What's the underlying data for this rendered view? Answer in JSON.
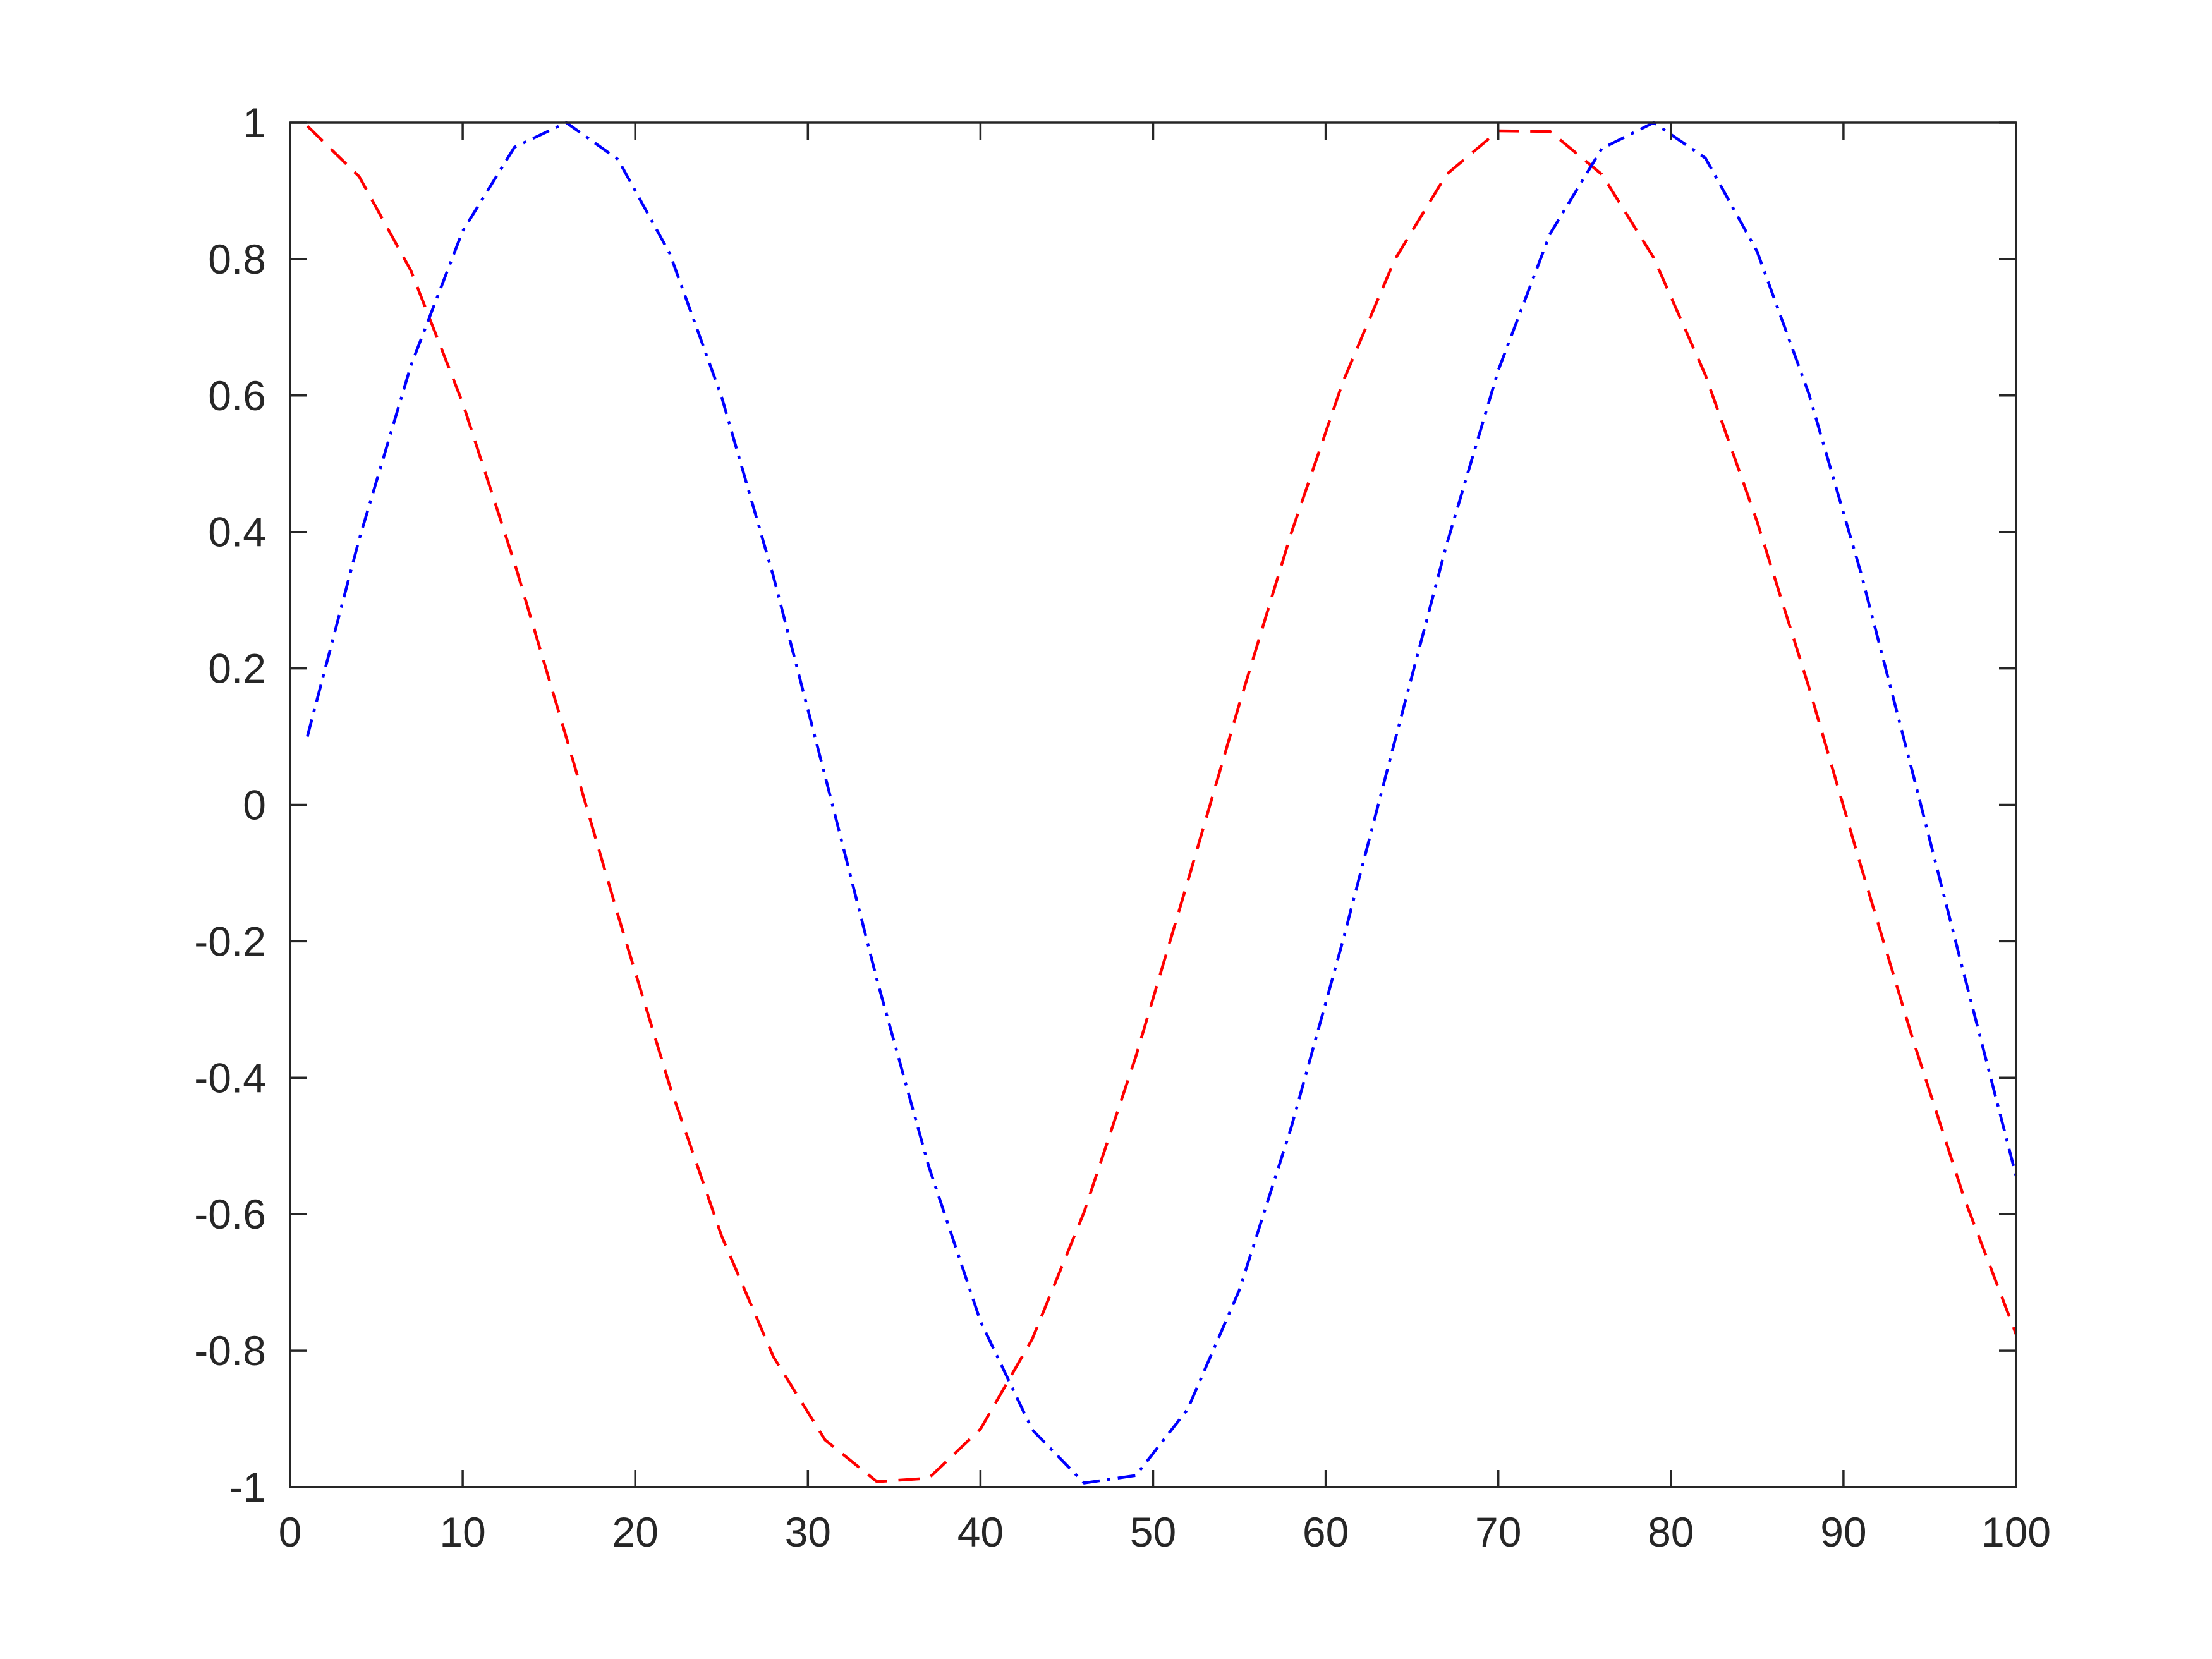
{
  "chart_data": {
    "type": "line",
    "title": "",
    "xlabel": "",
    "ylabel": "",
    "xlim": [
      0,
      100
    ],
    "ylim": [
      -1,
      1
    ],
    "grid": false,
    "legend": null,
    "x_ticks": [
      0,
      10,
      20,
      30,
      40,
      50,
      60,
      70,
      80,
      90,
      100
    ],
    "y_ticks": [
      -1,
      -0.8,
      -0.6,
      -0.4,
      -0.2,
      0,
      0.2,
      0.4,
      0.6,
      0.8,
      1
    ],
    "x_tick_labels": [
      "0",
      "10",
      "20",
      "30",
      "40",
      "50",
      "60",
      "70",
      "80",
      "90",
      "100"
    ],
    "y_tick_labels": [
      "-1",
      "-0.8",
      "-0.6",
      "-0.4",
      "-0.2",
      "0",
      "0.2",
      "0.4",
      "0.6",
      "0.8",
      "1"
    ],
    "series": [
      {
        "color": "#ff0000",
        "line_style": "dashed",
        "x": [
          1,
          4,
          7,
          10,
          13,
          16,
          19,
          22,
          25,
          28,
          31,
          34,
          37,
          40,
          43,
          46,
          49,
          52,
          55,
          58,
          61,
          64,
          67,
          70,
          73,
          76,
          79,
          82,
          85,
          88,
          91,
          94,
          97,
          100
        ],
        "y": [
          0.995,
          0.921,
          0.783,
          0.589,
          0.355,
          0.099,
          -0.162,
          -0.412,
          -0.632,
          -0.809,
          -0.931,
          -0.992,
          -0.987,
          -0.915,
          -0.783,
          -0.597,
          -0.369,
          -0.113,
          0.148,
          0.398,
          0.62,
          0.799,
          0.924,
          0.988,
          0.987,
          0.924,
          0.802,
          0.63,
          0.415,
          0.172,
          -0.089,
          -0.342,
          -0.577,
          -0.776
        ]
      },
      {
        "color": "#0000ff",
        "line_style": "dash-dot",
        "x": [
          1,
          4,
          7,
          10,
          13,
          16,
          19,
          22,
          25,
          28,
          31,
          34,
          37,
          40,
          43,
          46,
          49,
          52,
          55,
          58,
          61,
          64,
          67,
          70,
          73,
          76,
          79,
          82,
          85,
          88,
          91,
          94,
          97,
          100
        ],
        "y": [
          0.1,
          0.389,
          0.644,
          0.841,
          0.964,
          1.0,
          0.946,
          0.808,
          0.598,
          0.335,
          0.042,
          -0.256,
          -0.53,
          -0.757,
          -0.916,
          -0.994,
          -0.983,
          -0.886,
          -0.711,
          -0.473,
          -0.199,
          0.093,
          0.381,
          0.637,
          0.837,
          0.962,
          1.0,
          0.948,
          0.811,
          0.602,
          0.341,
          0.048,
          -0.25,
          -0.544
        ]
      }
    ]
  }
}
